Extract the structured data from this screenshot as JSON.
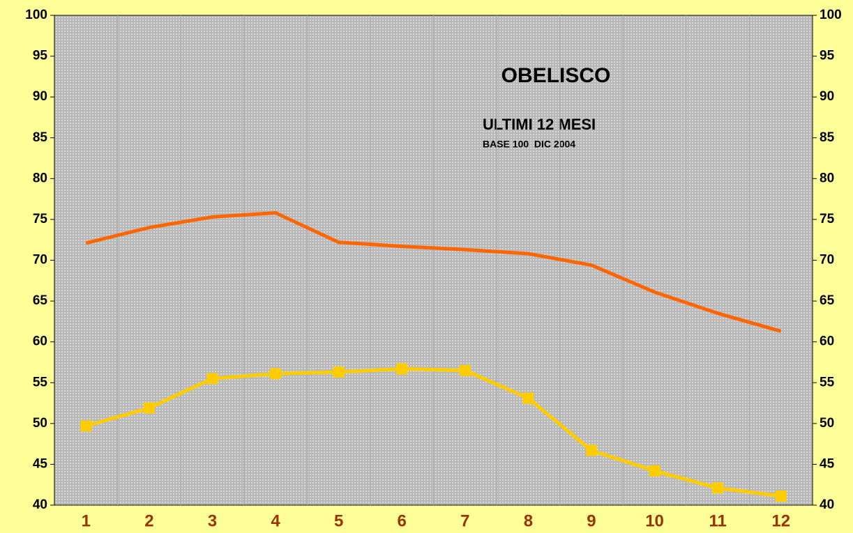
{
  "chart_data": {
    "type": "line",
    "title": "OBELISCO",
    "subtitle": "ULTIMI 12 MESI",
    "annotation": "BASE 100  DIC 2004",
    "categories": [
      "1",
      "2",
      "3",
      "4",
      "5",
      "6",
      "7",
      "8",
      "9",
      "10",
      "11",
      "12"
    ],
    "series": [
      {
        "color": "#ff6600",
        "marker": "none",
        "values": [
          72.1,
          74.0,
          75.3,
          75.8,
          72.2,
          71.7,
          71.3,
          70.8,
          69.4,
          66.1,
          63.5,
          61.3
        ]
      },
      {
        "color": "#ffcc00",
        "marker": "square",
        "values": [
          49.7,
          51.9,
          55.5,
          56.1,
          56.3,
          56.7,
          56.5,
          53.1,
          46.7,
          44.2,
          42.1,
          41.1
        ]
      }
    ],
    "ylim": [
      40,
      100
    ],
    "yticks": [
      40,
      45,
      50,
      55,
      60,
      65,
      70,
      75,
      80,
      85,
      90,
      95,
      100
    ],
    "y2lim": [
      40,
      100
    ],
    "y2ticks": [
      40,
      45,
      50,
      55,
      60,
      65,
      70,
      75,
      80,
      85,
      90,
      95,
      100
    ],
    "grid": false
  }
}
